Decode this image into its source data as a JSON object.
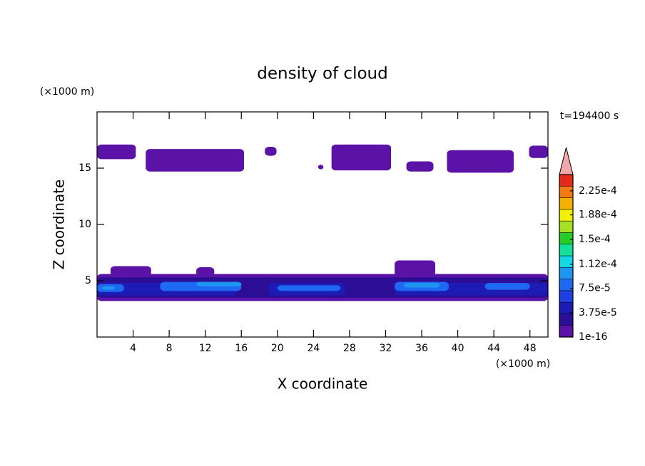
{
  "chart_data": {
    "type": "contour",
    "title": "density of cloud",
    "x_label": "X coordinate",
    "y_label": "Z coordinate",
    "x_unit": "(×1000 m)",
    "y_unit": "(×1000 m)",
    "time_label": "t=194400 s",
    "xlim": [
      0,
      50
    ],
    "ylim": [
      0,
      20
    ],
    "xticks": [
      4,
      8,
      12,
      16,
      20,
      24,
      28,
      32,
      36,
      40,
      44,
      48
    ],
    "yticks": [
      5,
      10,
      15
    ],
    "clim": [
      0,
      0.00025
    ],
    "cticks": [
      {
        "value": 1e-16,
        "label": "1e-16"
      },
      {
        "value": 3.75e-05,
        "label": "3.75e-5"
      },
      {
        "value": 7.5e-05,
        "label": "7.5e-5"
      },
      {
        "value": 0.000112,
        "label": "1.12e-4"
      },
      {
        "value": 0.00015,
        "label": "1.5e-4"
      },
      {
        "value": 0.000188,
        "label": "1.88e-4"
      },
      {
        "value": 0.000225,
        "label": "2.25e-4"
      }
    ],
    "colors": [
      "#5b12a6",
      "#2c0e96",
      "#1c1cb4",
      "#1f3fe2",
      "#1f68f2",
      "#1f95f2",
      "#12d8e4",
      "#12e09c",
      "#28cc28",
      "#a6e022",
      "#f2f000",
      "#f2b000",
      "#f27a10",
      "#e62a1a"
    ],
    "over_color": "#f2a8a8",
    "patches": [
      {
        "x": [
          0,
          4.3
        ],
        "z": [
          15.8,
          17.1
        ],
        "level": 1e-16
      },
      {
        "x": [
          5.4,
          16.3
        ],
        "z": [
          14.7,
          16.7
        ],
        "level": 1e-16
      },
      {
        "x": [
          18.6,
          19.9
        ],
        "z": [
          16.1,
          16.9
        ],
        "level": 1e-16
      },
      {
        "x": [
          24.5,
          25.1
        ],
        "z": [
          14.9,
          15.3
        ],
        "level": 1e-16
      },
      {
        "x": [
          26,
          32.6
        ],
        "z": [
          14.8,
          17.1
        ],
        "level": 1e-16
      },
      {
        "x": [
          34.3,
          37.3
        ],
        "z": [
          14.7,
          15.6
        ],
        "level": 1e-16
      },
      {
        "x": [
          38.8,
          46.2
        ],
        "z": [
          14.6,
          16.6
        ],
        "level": 1e-16
      },
      {
        "x": [
          47.9,
          50
        ],
        "z": [
          15.9,
          17
        ],
        "level": 1e-16
      },
      {
        "x": [
          0,
          50
        ],
        "z": [
          3.2,
          5.6
        ],
        "level": 1e-16
      },
      {
        "x": [
          1.5,
          6
        ],
        "z": [
          5.4,
          6.3
        ],
        "level": 1e-16
      },
      {
        "x": [
          11,
          13
        ],
        "z": [
          5.4,
          6.2
        ],
        "level": 1e-16
      },
      {
        "x": [
          33,
          37.5
        ],
        "z": [
          5.4,
          6.8
        ],
        "level": 1e-16
      },
      {
        "x": [
          0,
          50
        ],
        "z": [
          3.5,
          5.3
        ],
        "level": 2e-05
      },
      {
        "x": [
          0,
          15.5
        ],
        "z": [
          3.7,
          4.8
        ],
        "level": 5e-05
      },
      {
        "x": [
          19,
          27.5
        ],
        "z": [
          3.7,
          4.8
        ],
        "level": 5e-05
      },
      {
        "x": [
          33,
          50
        ],
        "z": [
          3.7,
          4.8
        ],
        "level": 5e-05
      },
      {
        "x": [
          0,
          3
        ],
        "z": [
          4,
          4.7
        ],
        "level": 8e-05
      },
      {
        "x": [
          7,
          16
        ],
        "z": [
          4.1,
          4.9
        ],
        "level": 8e-05
      },
      {
        "x": [
          20,
          27
        ],
        "z": [
          4.1,
          4.6
        ],
        "level": 8e-05
      },
      {
        "x": [
          33,
          39
        ],
        "z": [
          4.1,
          4.9
        ],
        "level": 8e-05
      },
      {
        "x": [
          43,
          48
        ],
        "z": [
          4.2,
          4.8
        ],
        "level": 8e-05
      },
      {
        "x": [
          11,
          16
        ],
        "z": [
          4.5,
          4.9
        ],
        "level": 0.0001
      },
      {
        "x": [
          34,
          38
        ],
        "z": [
          4.4,
          4.8
        ],
        "level": 0.0001
      },
      {
        "x": [
          0.5,
          2
        ],
        "z": [
          4.2,
          4.5
        ],
        "level": 0.0001
      }
    ]
  }
}
